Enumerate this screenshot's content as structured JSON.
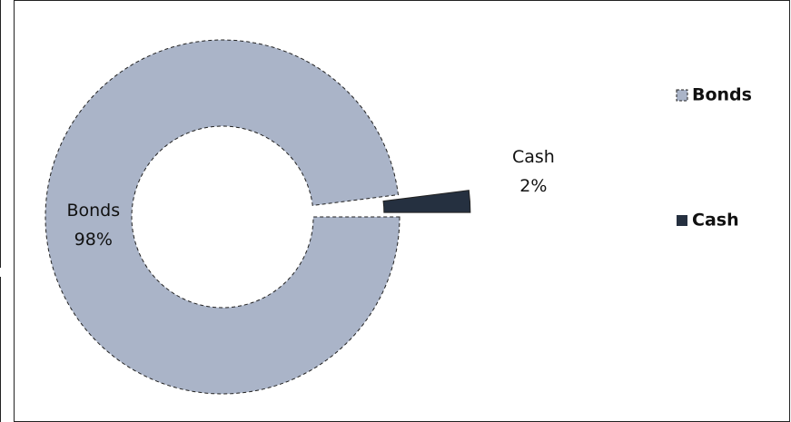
{
  "chart_data": {
    "type": "donut",
    "categories": [
      "Bonds",
      "Cash"
    ],
    "values": [
      98,
      2
    ],
    "value_labels": [
      "98%",
      "2%"
    ],
    "colors": [
      "#aab4c8",
      "#253040"
    ],
    "legend": "right"
  }
}
